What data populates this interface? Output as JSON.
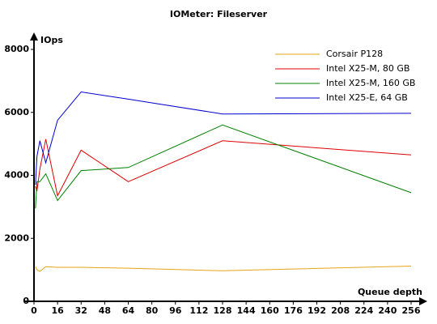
{
  "chart_data": {
    "type": "line",
    "title": "IOMeter: Fileserver",
    "x_label": "Queue depth",
    "y_label": "IOps",
    "x": [
      1,
      2,
      4,
      8,
      16,
      32,
      64,
      128,
      256
    ],
    "series": [
      {
        "name": "Corsair P128",
        "color": "#e8a317",
        "values": [
          1100,
          1000,
          950,
          1100,
          1080,
          1080,
          1050,
          970,
          1120
        ]
      },
      {
        "name": "Intel X25-M, 80 GB",
        "color": "#e00000",
        "values": [
          3650,
          3500,
          4200,
          5150,
          3350,
          4800,
          3800,
          5100,
          4650
        ]
      },
      {
        "name": "Intel X25-M, 160 GB",
        "color": "#008000",
        "values": [
          2950,
          3800,
          3800,
          4050,
          3200,
          4150,
          4250,
          5600,
          3450
        ]
      },
      {
        "name": "Intel X25-E, 64 GB",
        "color": "#0000d0",
        "values": [
          3700,
          4600,
          5100,
          4400,
          5750,
          6650,
          6420,
          5950,
          5970
        ]
      }
    ],
    "xlim": [
      0,
      256
    ],
    "xticks": [
      0,
      16,
      32,
      48,
      64,
      80,
      96,
      112,
      128,
      144,
      160,
      176,
      192,
      208,
      224,
      240,
      256
    ],
    "ylim": [
      0,
      8000
    ],
    "yticks": [
      0,
      2000,
      4000,
      6000,
      8000
    ],
    "grid": false,
    "legend": "top-right"
  }
}
